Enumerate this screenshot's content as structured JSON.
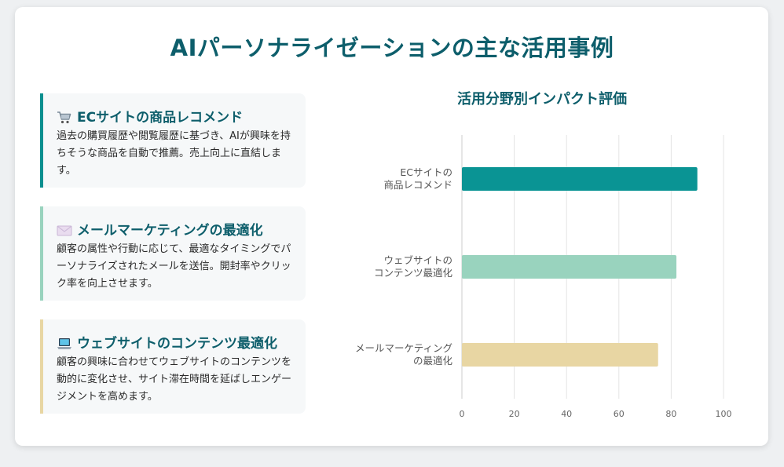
{
  "title": "AIパーソナライゼーションの主な活用事例",
  "cases": [
    {
      "icon": "shopping-cart-icon",
      "title": "ECサイトの商品レコメンド",
      "desc": "過去の購買履歴や閲覧履歴に基づき、AIが興味を持ちそうな商品を自動で推薦。売上向上に直結します。",
      "color": "#0a8f8f"
    },
    {
      "icon": "envelope-icon",
      "title": "メールマーケティングの最適化",
      "desc": "顧客の属性や行動に応じて、最適なタイミングでパーソナライズされたメールを送信。開封率やクリック率を向上させます。",
      "color": "#99d3be"
    },
    {
      "icon": "laptop-icon",
      "title": "ウェブサイトのコンテンツ最適化",
      "desc": "顧客の興味に合わせてウェブサイトのコンテンツを動的に変化させ、サイト滞在時間を延ばしエンゲージメントを高めます。",
      "color": "#e8d6a3"
    }
  ],
  "chart_data": {
    "type": "bar",
    "orientation": "horizontal",
    "title": "活用分野別インパクト評価",
    "categories": [
      [
        "ECサイトの",
        "商品レコメンド"
      ],
      [
        "ウェブサイトの",
        "コンテンツ最適化"
      ],
      [
        "メールマーケティング",
        "の最適化"
      ]
    ],
    "values": [
      90,
      82,
      75
    ],
    "colors": [
      "#0a9494",
      "#99d3be",
      "#e8d6a3"
    ],
    "xlim": [
      0,
      100
    ],
    "ticks": [
      "0",
      "20",
      "40",
      "60",
      "80",
      "100"
    ],
    "grid": true
  }
}
